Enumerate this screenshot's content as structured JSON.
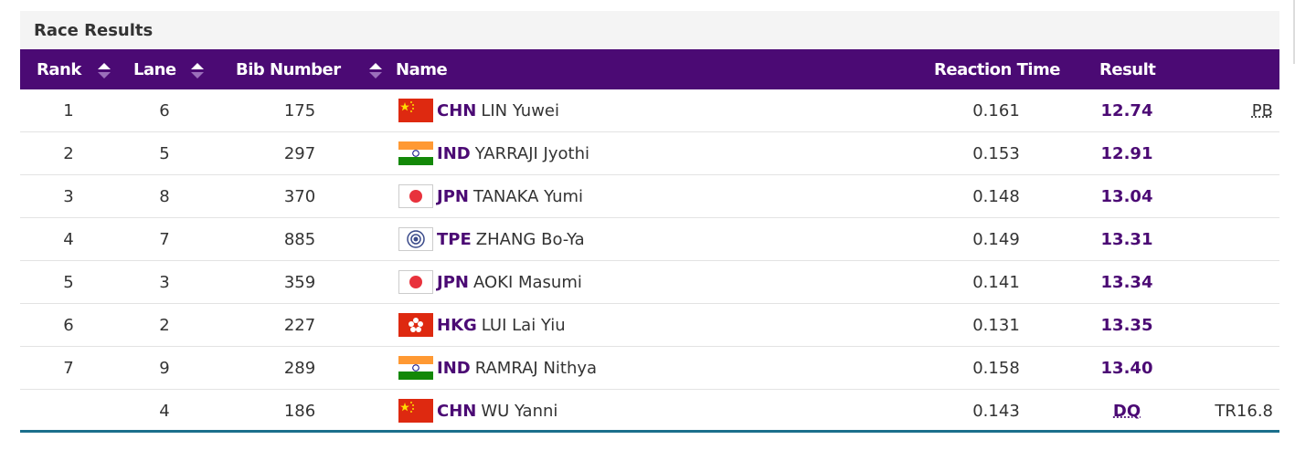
{
  "header": {
    "title": "Race Results"
  },
  "table": {
    "columns": [
      "Rank",
      "Lane",
      "Bib Number",
      "Name",
      "Reaction Time",
      "Result"
    ],
    "rows": [
      {
        "rank": "1",
        "lane": "6",
        "bib": "175",
        "country": "CHN",
        "name": "LIN Yuwei",
        "reaction": "0.161",
        "result": "12.74",
        "note": "PB"
      },
      {
        "rank": "2",
        "lane": "5",
        "bib": "297",
        "country": "IND",
        "name": "YARRAJI Jyothi",
        "reaction": "0.153",
        "result": "12.91",
        "note": null
      },
      {
        "rank": "3",
        "lane": "8",
        "bib": "370",
        "country": "JPN",
        "name": "TANAKA Yumi",
        "reaction": "0.148",
        "result": "13.04",
        "note": null
      },
      {
        "rank": "4",
        "lane": "7",
        "bib": "885",
        "country": "TPE",
        "name": "ZHANG Bo-Ya",
        "reaction": "0.149",
        "result": "13.31",
        "note": null
      },
      {
        "rank": "5",
        "lane": "3",
        "bib": "359",
        "country": "JPN",
        "name": "AOKI Masumi",
        "reaction": "0.141",
        "result": "13.34",
        "note": null
      },
      {
        "rank": "6",
        "lane": "2",
        "bib": "227",
        "country": "HKG",
        "name": "LUI Lai Yiu",
        "reaction": "0.131",
        "result": "13.35",
        "note": null
      },
      {
        "rank": "7",
        "lane": "9",
        "bib": "289",
        "country": "IND",
        "name": "RAMRAJ Nithya",
        "reaction": "0.158",
        "result": "13.40",
        "note": null
      },
      {
        "rank": null,
        "lane": "4",
        "bib": "186",
        "country": "CHN",
        "name": "WU Yanni",
        "reaction": "0.143",
        "result": "DQ",
        "note": "TR16.8"
      }
    ]
  }
}
